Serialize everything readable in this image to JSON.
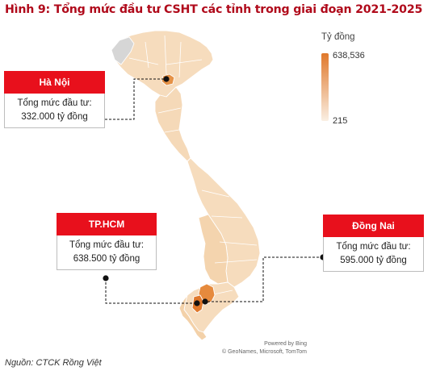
{
  "title": "Hình 9: Tổng mức đầu tư CSHT các tỉnh trong giai đoạn 2021-2025",
  "legend": {
    "unit": "Tỷ đồng",
    "max": "638,536",
    "min": "215",
    "color_high": "#e0782b",
    "color_low": "#faefe3"
  },
  "callouts": {
    "hanoi": {
      "name": "Hà Nội",
      "label": "Tổng mức đầu tư:",
      "value": "332.000 tỷ đồng"
    },
    "hcm": {
      "name": "TP.HCM",
      "label": "Tổng mức đầu tư:",
      "value": "638.500 tỷ đồng"
    },
    "dongnai": {
      "name": "Đồng Nai",
      "label": "Tổng mức đầu tư:",
      "value": "595.000 tỷ đồng"
    }
  },
  "credits": {
    "line1": "Powered by Bing",
    "line2": "© GeoNames, Microsoft, TomTom"
  },
  "source": "Nguồn: CTCK Rồng Việt",
  "colors": {
    "header_red": "#e8101c",
    "title_red": "#b00a1b",
    "province_base": "#f7dfc3",
    "hcm": "#e0782b",
    "dongnai": "#e68a3d",
    "hanoi": "#e59247"
  }
}
